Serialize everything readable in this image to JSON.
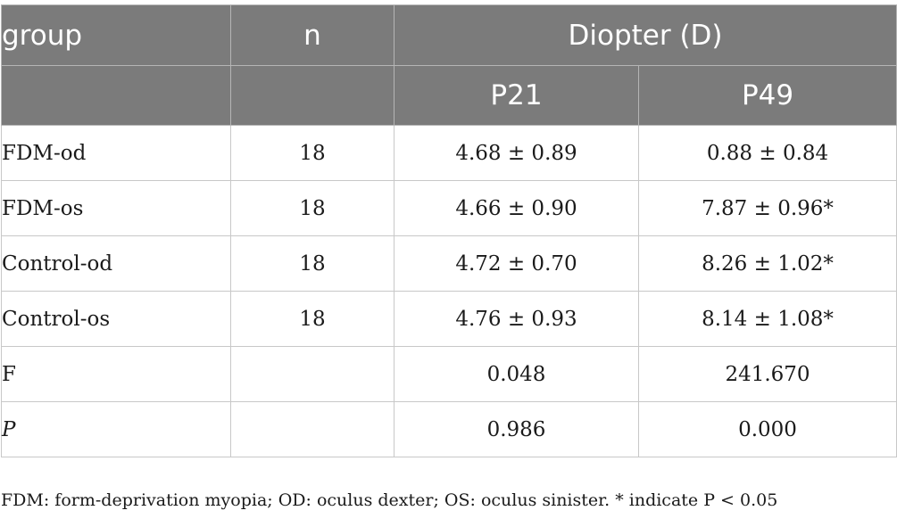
{
  "table": {
    "header_row1": {
      "group": "group",
      "n": "n",
      "diopter": "Diopter (D)"
    },
    "header_row2": {
      "group": "",
      "n": "",
      "p21": "P21",
      "p49": "P49"
    },
    "rows": [
      {
        "group": "FDM-od",
        "n": "18",
        "p21": "4.68 ± 0.89",
        "p49": "0.88 ± 0.84"
      },
      {
        "group": "FDM-os",
        "n": "18",
        "p21": "4.66 ± 0.90",
        "p49": "7.87 ± 0.96*"
      },
      {
        "group": "Control-od",
        "n": "18",
        "p21": "4.72 ± 0.70",
        "p49": "8.26 ± 1.02*"
      },
      {
        "group": "Control-os",
        "n": "18",
        "p21": "4.76 ± 0.93",
        "p49": "8.14 ± 1.08*"
      },
      {
        "group": "F",
        "n": "",
        "p21": "0.048",
        "p49": "241.670"
      },
      {
        "group": "P",
        "n": "",
        "p21": "0.986",
        "p49": "0.000"
      }
    ]
  },
  "footnote": "FDM: form-deprivation myopia; OD: oculus dexter; OS: oculus sinister. * indicate P < 0.05",
  "colors": {
    "header_bg": "#7b7b7b",
    "header_text": "#ffffff",
    "border": "#c8c8c8",
    "body_text": "#1a1a1a"
  }
}
